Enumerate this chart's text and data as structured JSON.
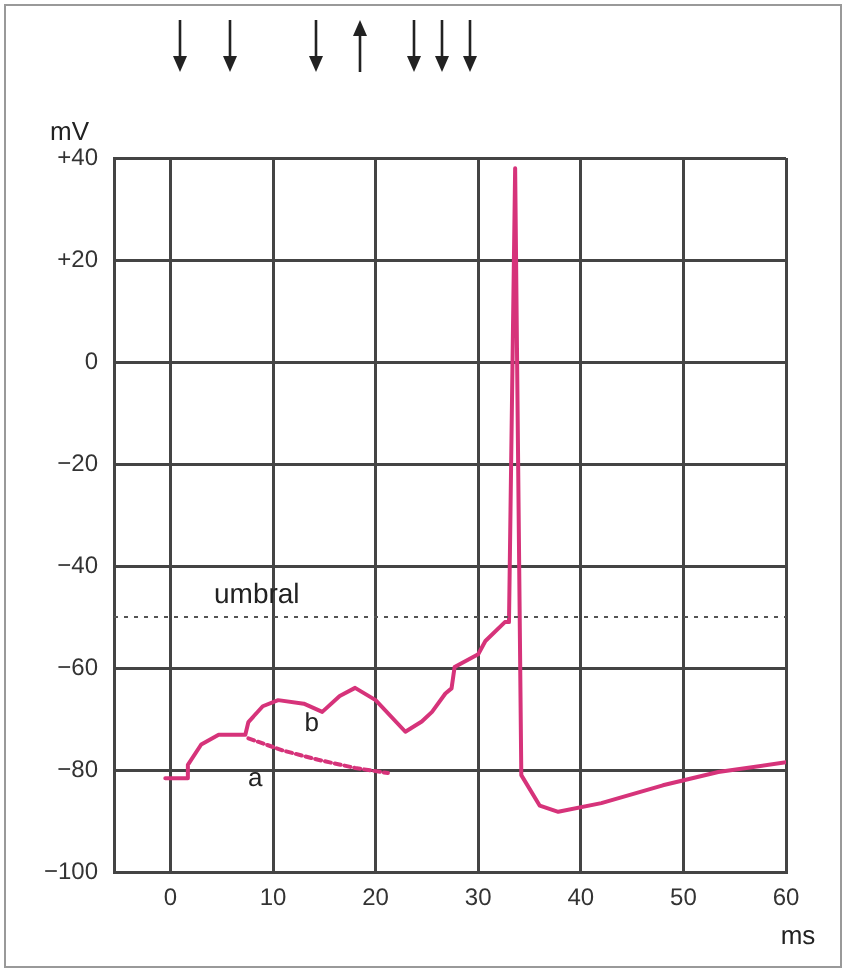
{
  "chart_data": {
    "type": "line",
    "xlabel": "ms",
    "ylabel": "mV",
    "xlim": [
      -5.5,
      60
    ],
    "xticks": [
      0,
      10,
      20,
      30,
      40,
      50,
      60
    ],
    "ylim": [
      -100,
      40
    ],
    "yticks": [
      {
        "value": 40,
        "label": "+40"
      },
      {
        "value": 20,
        "label": "+20"
      },
      0,
      {
        "value": -20,
        "label": "−20"
      },
      {
        "value": -40,
        "label": "−40"
      },
      {
        "value": -60,
        "label": "−60"
      },
      {
        "value": -80,
        "label": "−80"
      },
      {
        "value": -100,
        "label": "−100"
      }
    ],
    "grid": true,
    "legend": false,
    "marker": "none",
    "series": [
      {
        "color": "#d6337a",
        "line_style": "solid",
        "x": [
          -0.5,
          1.6,
          1.7,
          3,
          4.7,
          7.3,
          7.6,
          9,
          10.5,
          13,
          14.8,
          16.5,
          18,
          20,
          22.9,
          24.5,
          25.5,
          26.8,
          27.4,
          27.7,
          30,
          30.7,
          32.6,
          33,
          33.6,
          34.2,
          36,
          37.8,
          42,
          48,
          53.4,
          60
        ],
        "values": [
          -81.6,
          -81.6,
          -79,
          -75,
          -73.1,
          -73.1,
          -70.6,
          -67.5,
          -66.3,
          -67,
          -68.6,
          -65.5,
          -63.9,
          -66.3,
          -72.5,
          -70.5,
          -68.6,
          -65,
          -64,
          -59.8,
          -57.3,
          -54.7,
          -51,
          -51,
          38,
          -81,
          -87,
          -88.2,
          -86.5,
          -83,
          -80.4,
          -78.5
        ]
      },
      {
        "color": "#d6337a",
        "line_style": "dashed",
        "x": [
          7.6,
          11,
          14.4,
          18,
          21.2
        ],
        "values": [
          -73.8,
          -76.2,
          -78,
          -79.6,
          -80.6
        ]
      }
    ],
    "ref_lines": [
      {
        "axis": "y",
        "value": -50,
        "label": "umbral",
        "color": "#555555",
        "line_style": "dotted"
      }
    ],
    "annotations": [
      {
        "text": "a",
        "x": 11,
        "y": -76.2
      },
      {
        "text": "b",
        "x": 16.5,
        "y": -65.5
      }
    ]
  }
}
